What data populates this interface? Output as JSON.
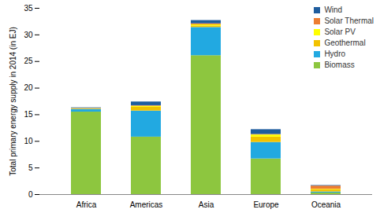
{
  "chart_data": {
    "type": "bar",
    "stacked": true,
    "legend": "upper right",
    "y_label": "Total primary energy supply in 2014 (in EJ)",
    "categories": [
      "Africa",
      "Americas",
      "Asia",
      "Europe",
      "Oceania"
    ],
    "series": [
      {
        "name": "Biomass",
        "color": "#8dc63f",
        "values": [
          15.5,
          10.8,
          26.1,
          6.7,
          0.3
        ]
      },
      {
        "name": "Hydro",
        "color": "#22a9e1",
        "values": [
          0.5,
          4.9,
          5.3,
          3.1,
          0.2
        ]
      },
      {
        "name": "Geothermal",
        "color": "#f2c200",
        "values": [
          0.1,
          0.7,
          0.3,
          1.0,
          0.4
        ]
      },
      {
        "name": "Solar PV",
        "color": "#ffff00",
        "values": [
          0.05,
          0.2,
          0.2,
          0.4,
          0.1
        ]
      },
      {
        "name": "Solar Thermal",
        "color": "#ed7d31",
        "values": [
          0.05,
          0.1,
          0.2,
          0.1,
          0.6
        ]
      },
      {
        "name": "Wind",
        "color": "#1f5d9e",
        "values": [
          0.1,
          0.7,
          0.6,
          0.9,
          0.1
        ]
      }
    ],
    "ylim": [
      0,
      35
    ],
    "yticks": [
      0,
      5,
      10,
      15,
      20,
      25,
      30,
      35
    ],
    "grid": false
  }
}
